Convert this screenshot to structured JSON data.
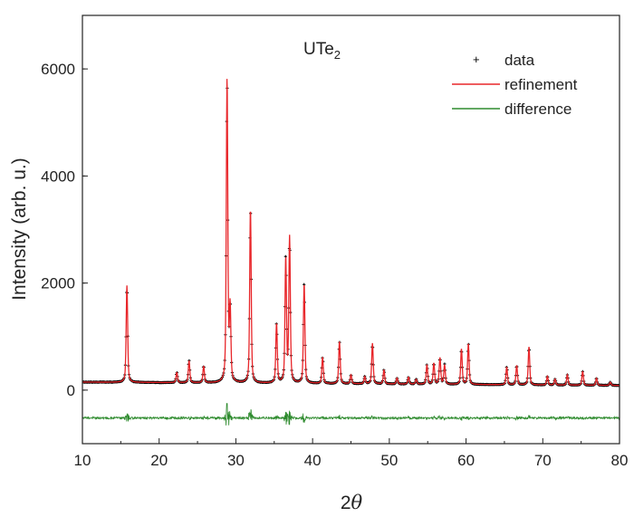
{
  "chart_data": {
    "type": "line",
    "title": "UTe",
    "title_subscript": "2",
    "xlabel_main": "2",
    "xlabel_symbol": "θ",
    "ylabel": "Intensity (arb. u.)",
    "xlim": [
      10,
      80
    ],
    "ylim": [
      -1000,
      7000
    ],
    "xticks": [
      10,
      20,
      30,
      40,
      50,
      60,
      70,
      80
    ],
    "yticks": [
      0,
      2000,
      4000,
      6000
    ],
    "legend_position": "top-right",
    "background": 150,
    "difference_offset": -520,
    "colors": {
      "data": "#000000",
      "refinement": "#e8262a",
      "difference": "#2e8b2e"
    },
    "peaks": [
      {
        "x": 15.8,
        "y": 1900
      },
      {
        "x": 22.3,
        "y": 280
      },
      {
        "x": 23.9,
        "y": 500
      },
      {
        "x": 25.8,
        "y": 400
      },
      {
        "x": 28.85,
        "y": 5750
      },
      {
        "x": 29.25,
        "y": 1450
      },
      {
        "x": 31.9,
        "y": 3350
      },
      {
        "x": 35.3,
        "y": 1200
      },
      {
        "x": 36.5,
        "y": 2400
      },
      {
        "x": 37.0,
        "y": 2800
      },
      {
        "x": 38.9,
        "y": 1950
      },
      {
        "x": 41.3,
        "y": 580
      },
      {
        "x": 43.5,
        "y": 880
      },
      {
        "x": 45.0,
        "y": 250
      },
      {
        "x": 46.8,
        "y": 220
      },
      {
        "x": 47.8,
        "y": 850
      },
      {
        "x": 49.3,
        "y": 350
      },
      {
        "x": 51.0,
        "y": 200
      },
      {
        "x": 52.5,
        "y": 220
      },
      {
        "x": 53.5,
        "y": 180
      },
      {
        "x": 54.9,
        "y": 450
      },
      {
        "x": 55.8,
        "y": 480
      },
      {
        "x": 56.6,
        "y": 580
      },
      {
        "x": 57.2,
        "y": 450
      },
      {
        "x": 59.4,
        "y": 750
      },
      {
        "x": 60.3,
        "y": 850
      },
      {
        "x": 65.3,
        "y": 420
      },
      {
        "x": 66.6,
        "y": 450
      },
      {
        "x": 68.2,
        "y": 800
      },
      {
        "x": 70.6,
        "y": 250
      },
      {
        "x": 71.6,
        "y": 200
      },
      {
        "x": 73.2,
        "y": 280
      },
      {
        "x": 75.2,
        "y": 350
      },
      {
        "x": 77.0,
        "y": 220
      },
      {
        "x": 78.8,
        "y": 150
      }
    ],
    "series": [
      {
        "name": "data",
        "style": "points"
      },
      {
        "name": "refinement",
        "style": "line"
      },
      {
        "name": "difference",
        "style": "line"
      }
    ]
  }
}
